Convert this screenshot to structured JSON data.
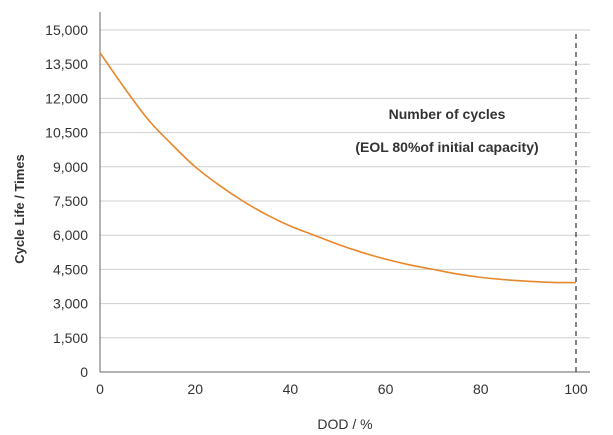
{
  "chart_data": {
    "type": "line",
    "title": "",
    "xlabel": "DOD / %",
    "ylabel": "Cycle Life / Times",
    "xlim": [
      0,
      100
    ],
    "ylim": [
      0,
      15000
    ],
    "x_ticks": [
      0,
      20,
      40,
      60,
      80,
      100
    ],
    "x_tick_labels": [
      "0",
      "20",
      "40",
      "60",
      "80",
      "100"
    ],
    "y_ticks": [
      0,
      1500,
      3000,
      4500,
      6000,
      7500,
      9000,
      10500,
      12000,
      13500,
      15000
    ],
    "y_tick_labels": [
      "0",
      "1,500",
      "3,000",
      "4,500",
      "6,000",
      "7,500",
      "9,000",
      "10,500",
      "12,000",
      "13,500",
      "15,000"
    ],
    "grid": "horizontal",
    "series": [
      {
        "color": "#E8872A",
        "x": [
          0,
          5,
          10,
          15,
          20,
          25,
          30,
          35,
          40,
          45,
          50,
          55,
          60,
          65,
          70,
          75,
          80,
          85,
          90,
          95,
          100
        ],
        "y": [
          14000,
          12500,
          11100,
          10000,
          9000,
          8200,
          7500,
          6900,
          6400,
          6000,
          5600,
          5250,
          4950,
          4700,
          4500,
          4300,
          4150,
          4050,
          3980,
          3930,
          3920
        ]
      }
    ],
    "reference_line": {
      "x": 100,
      "style": "dashed",
      "color": "#333333"
    },
    "annotations": [
      {
        "text": "Number of cycles"
      },
      {
        "text": "(EOL 80%of initial capacity)"
      }
    ]
  }
}
